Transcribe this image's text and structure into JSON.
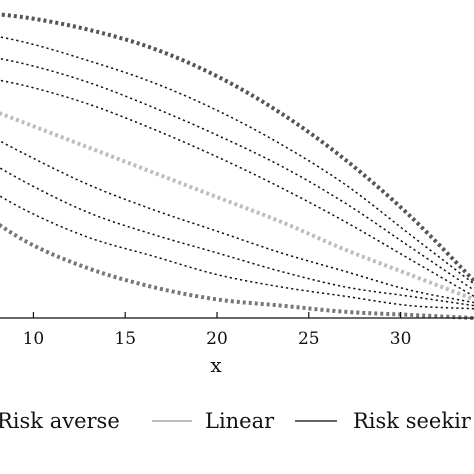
{
  "chart_data": {
    "type": "line",
    "xlabel": "x",
    "ylabel": "",
    "title": "",
    "xlim": [
      6,
      34
    ],
    "ylim": [
      0,
      1
    ],
    "x_ticks": [
      10,
      15,
      20,
      25,
      30
    ],
    "x_tick_labels": [
      "10",
      "15",
      "20",
      "25",
      "30"
    ],
    "grid": false,
    "legend_position": "bottom",
    "legend": [
      {
        "label": "Risk averse",
        "color": "#555555",
        "style": "solid"
      },
      {
        "label": "Linear",
        "color": "#bdbdbd",
        "style": "solid"
      },
      {
        "label": "Risk seekir",
        "color": "#333333",
        "style": "solid"
      }
    ],
    "x": [
      6,
      9.5,
      13,
      16.5,
      20,
      23.5,
      27,
      30.5,
      34
    ],
    "series": [
      {
        "group": "Risk averse",
        "emphasis": "outer",
        "values": [
          0.99,
          0.97,
          0.93,
          0.87,
          0.78,
          0.66,
          0.51,
          0.33,
          0.12
        ]
      },
      {
        "group": "Risk averse",
        "values": [
          0.93,
          0.89,
          0.83,
          0.76,
          0.67,
          0.56,
          0.43,
          0.27,
          0.11
        ]
      },
      {
        "group": "Risk averse",
        "values": [
          0.86,
          0.82,
          0.76,
          0.68,
          0.59,
          0.49,
          0.37,
          0.23,
          0.09
        ]
      },
      {
        "group": "Risk averse",
        "values": [
          0.79,
          0.75,
          0.69,
          0.61,
          0.52,
          0.42,
          0.31,
          0.19,
          0.07
        ]
      },
      {
        "group": "Linear",
        "values": [
          0.71,
          0.63,
          0.55,
          0.47,
          0.39,
          0.31,
          0.22,
          0.14,
          0.06
        ]
      },
      {
        "group": "Risk seekir",
        "values": [
          0.64,
          0.53,
          0.43,
          0.35,
          0.28,
          0.21,
          0.15,
          0.09,
          0.05
        ]
      },
      {
        "group": "Risk seekir",
        "values": [
          0.56,
          0.44,
          0.34,
          0.27,
          0.21,
          0.15,
          0.1,
          0.07,
          0.04
        ]
      },
      {
        "group": "Risk seekir",
        "values": [
          0.47,
          0.35,
          0.26,
          0.2,
          0.14,
          0.1,
          0.07,
          0.04,
          0.03
        ]
      },
      {
        "group": "Risk seekir",
        "emphasis": "outer",
        "values": [
          0.39,
          0.25,
          0.16,
          0.1,
          0.06,
          0.04,
          0.02,
          0.01,
          0.0
        ]
      }
    ]
  }
}
